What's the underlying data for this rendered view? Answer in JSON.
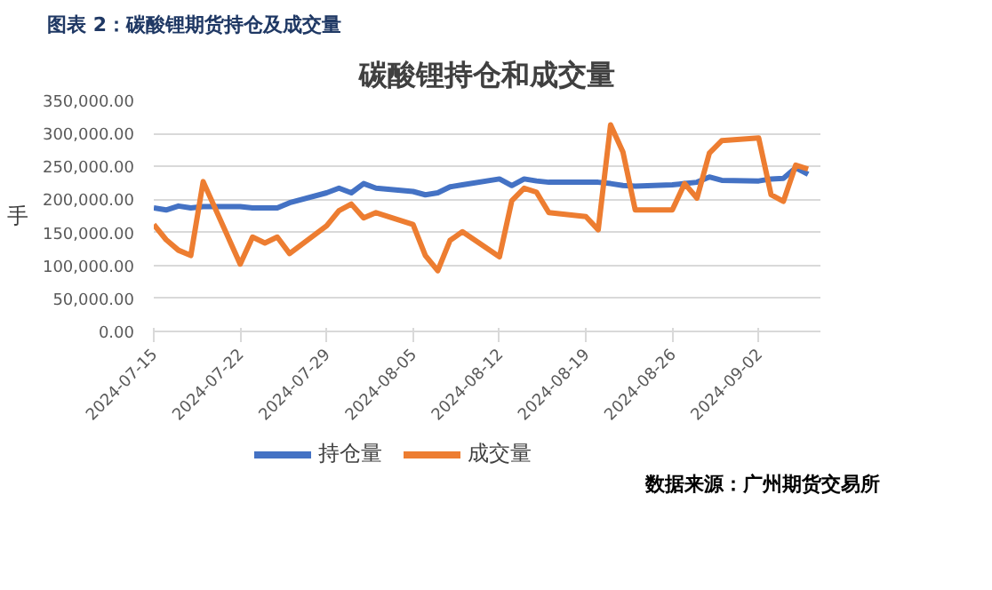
{
  "chart_data": {
    "type": "line",
    "title": "碳酸锂持仓和成交量",
    "subtitle": "图表 2：碳酸锂期货持仓及成交量",
    "ylabel": "手",
    "x": [
      "2024-07-15",
      "2024-07-16",
      "2024-07-17",
      "2024-07-18",
      "2024-07-19",
      "2024-07-22",
      "2024-07-23",
      "2024-07-24",
      "2024-07-25",
      "2024-07-26",
      "2024-07-29",
      "2024-07-30",
      "2024-07-31",
      "2024-08-01",
      "2024-08-02",
      "2024-08-05",
      "2024-08-06",
      "2024-08-07",
      "2024-08-08",
      "2024-08-09",
      "2024-08-12",
      "2024-08-13",
      "2024-08-14",
      "2024-08-15",
      "2024-08-16",
      "2024-08-19",
      "2024-08-20",
      "2024-08-21",
      "2024-08-22",
      "2024-08-23",
      "2024-08-26",
      "2024-08-27",
      "2024-08-28",
      "2024-08-29",
      "2024-08-30",
      "2024-09-02",
      "2024-09-03",
      "2024-09-04",
      "2024-09-05",
      "2024-09-06"
    ],
    "series": [
      {
        "name": "持仓量",
        "color": "#4472c4",
        "values": [
          187000,
          184000,
          190000,
          187000,
          189000,
          189000,
          187000,
          187000,
          187000,
          195000,
          210000,
          217000,
          210000,
          224000,
          217000,
          212000,
          207000,
          210000,
          219000,
          222000,
          231000,
          221000,
          231000,
          228000,
          226000,
          226000,
          226000,
          224000,
          221000,
          220000,
          222000,
          224000,
          226000,
          234000,
          229000,
          228000,
          231000,
          232000,
          248000,
          238000
        ]
      },
      {
        "name": "成交量",
        "color": "#ed7d31",
        "values": [
          162000,
          139000,
          123000,
          115000,
          227000,
          102000,
          143000,
          134000,
          143000,
          118000,
          160000,
          183000,
          193000,
          172000,
          180000,
          162000,
          115000,
          92000,
          138000,
          151000,
          113000,
          198000,
          217000,
          211000,
          180000,
          174000,
          154000,
          313000,
          272000,
          184000,
          184000,
          224000,
          202000,
          270000,
          289000,
          293000,
          207000,
          197000,
          252000,
          246000
        ]
      }
    ],
    "xlim": [
      "2024-07-15",
      "2024-09-07"
    ],
    "xticks": [
      "2024-07-15",
      "2024-07-22",
      "2024-07-29",
      "2024-08-05",
      "2024-08-12",
      "2024-08-19",
      "2024-08-26",
      "2024-09-02"
    ],
    "ylim": [
      0,
      350000
    ],
    "yticks": [
      {
        "value": 0,
        "label": "0.00"
      },
      {
        "value": 50000,
        "label": "50,000.00"
      },
      {
        "value": 100000,
        "label": "100,000.00"
      },
      {
        "value": 150000,
        "label": "150,000.00"
      },
      {
        "value": 200000,
        "label": "200,000.00"
      },
      {
        "value": 250000,
        "label": "250,000.00"
      },
      {
        "value": 300000,
        "label": "300,000.00"
      },
      {
        "value": 350000,
        "label": "350,000.00"
      }
    ],
    "grid": "y",
    "legend": "bottom",
    "line_style": "solid",
    "annotations": [
      "数据来源：广州期货交易所"
    ]
  }
}
